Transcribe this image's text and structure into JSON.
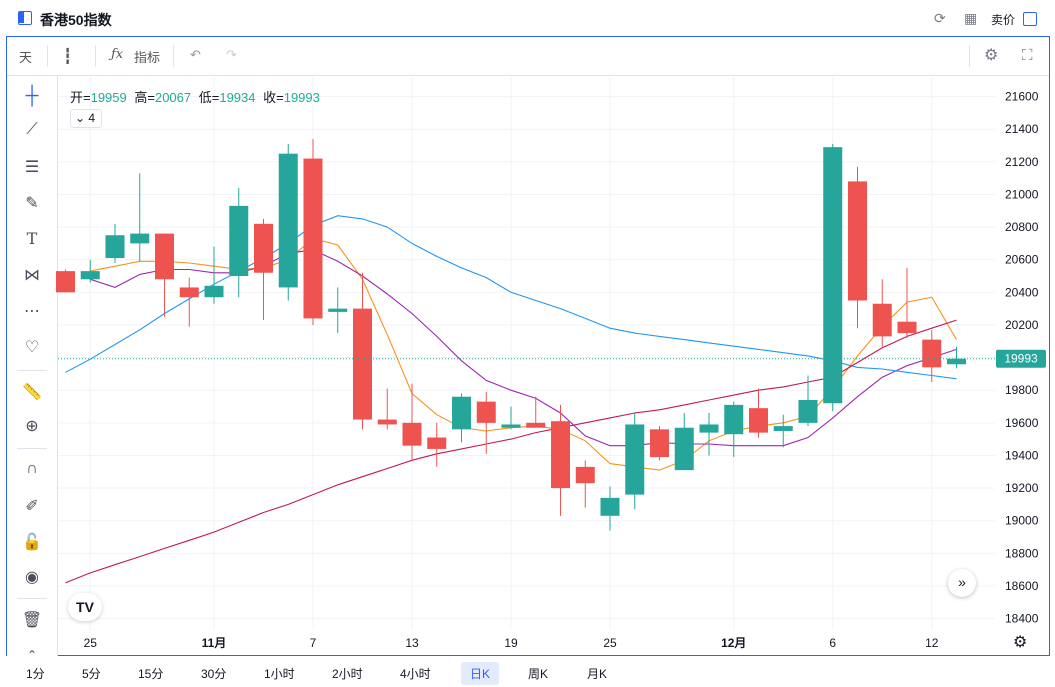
{
  "window": {
    "title": "香港50指数",
    "sell_label": "卖价"
  },
  "toolbar": {
    "interval": "天",
    "indicator_label": "指标"
  },
  "legend": {
    "open_label": "开=",
    "open": "19959",
    "high_label": "高=",
    "high": "20067",
    "low_label": "低=",
    "low": "19934",
    "close_label": "收=",
    "close": "19993",
    "ma_toggle_count": "4"
  },
  "price_tag": "19993",
  "intervals": [
    "1分",
    "5分",
    "15分",
    "30分",
    "1小时",
    "2小时",
    "4小时",
    "日K",
    "周K",
    "月K"
  ],
  "active_interval": "日K",
  "colors": {
    "up": "#26a69a",
    "down": "#ef5350",
    "accent": "#2962ff"
  },
  "chart_data": {
    "type": "candlestick",
    "y_ticks": [
      18400,
      18600,
      18800,
      19000,
      19200,
      19400,
      19600,
      19800,
      20000,
      20200,
      20400,
      20600,
      20800,
      21000,
      21200,
      21400,
      21600
    ],
    "ylim": [
      18330,
      21720
    ],
    "x_labels": [
      {
        "label": "25",
        "bold": false,
        "i": 1
      },
      {
        "label": "11月",
        "bold": true,
        "i": 6
      },
      {
        "label": "7",
        "bold": false,
        "i": 10
      },
      {
        "label": "13",
        "bold": false,
        "i": 14
      },
      {
        "label": "19",
        "bold": false,
        "i": 18
      },
      {
        "label": "25",
        "bold": false,
        "i": 22
      },
      {
        "label": "12月",
        "bold": true,
        "i": 27
      },
      {
        "label": "6",
        "bold": false,
        "i": 31
      },
      {
        "label": "12",
        "bold": false,
        "i": 35
      }
    ],
    "candles": [
      {
        "o": 20530,
        "h": 20540,
        "l": 20400,
        "c": 20400
      },
      {
        "o": 20480,
        "h": 20600,
        "l": 20460,
        "c": 20530
      },
      {
        "o": 20610,
        "h": 20820,
        "l": 20580,
        "c": 20750
      },
      {
        "o": 20700,
        "h": 21130,
        "l": 20590,
        "c": 20760
      },
      {
        "o": 20760,
        "h": 20760,
        "l": 20250,
        "c": 20480
      },
      {
        "o": 20430,
        "h": 20490,
        "l": 20190,
        "c": 20370
      },
      {
        "o": 20370,
        "h": 20680,
        "l": 20330,
        "c": 20440
      },
      {
        "o": 20500,
        "h": 21040,
        "l": 20370,
        "c": 20930
      },
      {
        "o": 20820,
        "h": 20850,
        "l": 20230,
        "c": 20520
      },
      {
        "o": 20430,
        "h": 21310,
        "l": 20350,
        "c": 21250
      },
      {
        "o": 21220,
        "h": 21340,
        "l": 20200,
        "c": 20240
      },
      {
        "o": 20280,
        "h": 20430,
        "l": 20150,
        "c": 20300
      },
      {
        "o": 20300,
        "h": 20520,
        "l": 19560,
        "c": 19620
      },
      {
        "o": 19620,
        "h": 19810,
        "l": 19560,
        "c": 19590
      },
      {
        "o": 19600,
        "h": 19840,
        "l": 19370,
        "c": 19460
      },
      {
        "o": 19510,
        "h": 19600,
        "l": 19330,
        "c": 19440
      },
      {
        "o": 19560,
        "h": 19780,
        "l": 19480,
        "c": 19760
      },
      {
        "o": 19730,
        "h": 19790,
        "l": 19410,
        "c": 19600
      },
      {
        "o": 19570,
        "h": 19700,
        "l": 19560,
        "c": 19590
      },
      {
        "o": 19600,
        "h": 19760,
        "l": 19570,
        "c": 19570
      },
      {
        "o": 19610,
        "h": 19710,
        "l": 19030,
        "c": 19200
      },
      {
        "o": 19330,
        "h": 19370,
        "l": 19080,
        "c": 19230
      },
      {
        "o": 19030,
        "h": 19210,
        "l": 18940,
        "c": 19140
      },
      {
        "o": 19160,
        "h": 19660,
        "l": 19070,
        "c": 19590
      },
      {
        "o": 19560,
        "h": 19580,
        "l": 19370,
        "c": 19390
      },
      {
        "o": 19310,
        "h": 19660,
        "l": 19310,
        "c": 19570
      },
      {
        "o": 19540,
        "h": 19660,
        "l": 19400,
        "c": 19590
      },
      {
        "o": 19530,
        "h": 19730,
        "l": 19390,
        "c": 19710
      },
      {
        "o": 19690,
        "h": 19810,
        "l": 19510,
        "c": 19540
      },
      {
        "o": 19550,
        "h": 19650,
        "l": 19450,
        "c": 19580
      },
      {
        "o": 19600,
        "h": 19890,
        "l": 19580,
        "c": 19740
      },
      {
        "o": 19720,
        "h": 21310,
        "l": 19670,
        "c": 21290
      },
      {
        "o": 21080,
        "h": 21170,
        "l": 20180,
        "c": 20350
      },
      {
        "o": 20330,
        "h": 20480,
        "l": 20060,
        "c": 20130
      },
      {
        "o": 20220,
        "h": 20550,
        "l": 20120,
        "c": 20150
      },
      {
        "o": 20110,
        "h": 20170,
        "l": 19850,
        "c": 19940
      },
      {
        "o": 19959,
        "h": 20067,
        "l": 19934,
        "c": 19993
      }
    ],
    "ma_lines": [
      {
        "color": "#f7931a",
        "values": [
          null,
          20530,
          20560,
          20590,
          20590,
          20580,
          20560,
          20540,
          20550,
          20600,
          20730,
          20690,
          20480,
          20140,
          19780,
          19650,
          19570,
          19550,
          19570,
          19580,
          19560,
          19490,
          19350,
          19330,
          19310,
          19370,
          19490,
          19550,
          19580,
          19600,
          19640,
          19810,
          20010,
          20190,
          20340,
          20370,
          20110
        ]
      },
      {
        "color": "#9c27b0",
        "values": [
          null,
          20480,
          20430,
          20510,
          20540,
          20540,
          20520,
          20520,
          20560,
          20640,
          20660,
          20590,
          20500,
          20390,
          20270,
          20130,
          19980,
          19860,
          19800,
          19750,
          19660,
          19520,
          19460,
          19460,
          19480,
          19470,
          19470,
          19460,
          19460,
          19460,
          19510,
          19630,
          19760,
          19880,
          19950,
          20000,
          20050
        ]
      },
      {
        "color": "#2196f3",
        "values": [
          19910,
          19990,
          20080,
          20170,
          20270,
          20360,
          20450,
          20530,
          20610,
          20700,
          20810,
          20870,
          20850,
          20800,
          20700,
          20620,
          20550,
          20490,
          20400,
          20350,
          20300,
          20240,
          20180,
          20150,
          20130,
          20110,
          20090,
          20070,
          20050,
          20030,
          20010,
          19980,
          19940,
          19930,
          19910,
          19890,
          19870
        ]
      },
      {
        "color": "#c2185b",
        "values": [
          18620,
          18680,
          18730,
          18780,
          18830,
          18880,
          18930,
          18990,
          19050,
          19100,
          19160,
          19220,
          19270,
          19320,
          19370,
          19410,
          19440,
          19470,
          19500,
          19540,
          19570,
          19600,
          19630,
          19660,
          19680,
          19710,
          19740,
          19770,
          19800,
          19820,
          19850,
          19880,
          19970,
          20060,
          20130,
          20180,
          20230
        ]
      }
    ],
    "last_price": 19993
  }
}
